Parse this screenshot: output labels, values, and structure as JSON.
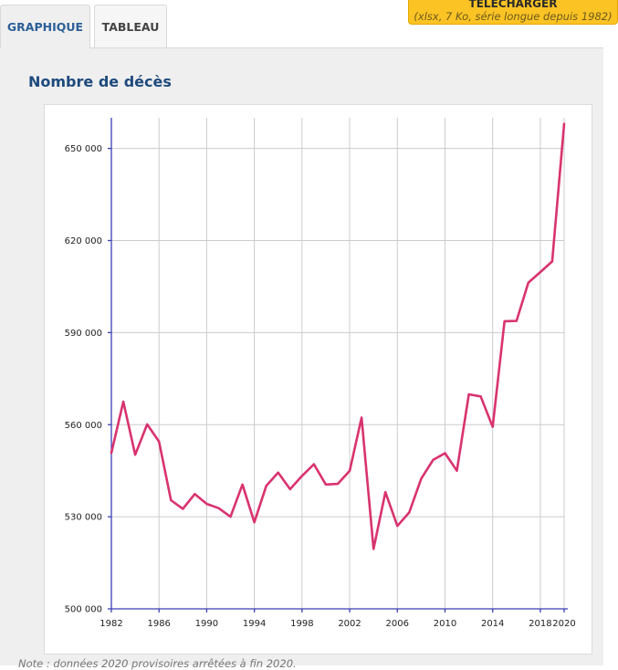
{
  "tabs": [
    {
      "label": "GRAPHIQUE",
      "active": true
    },
    {
      "label": "TABLEAU",
      "active": false
    }
  ],
  "download": {
    "title": "TÉLÉCHARGER",
    "subtitle": "(xlsx, 7 Ko, série longue depuis 1982)"
  },
  "colors": {
    "accent": "#2c5f97",
    "series": "#d9336e",
    "axis": "#3b3fb6",
    "button": "#fbc324"
  },
  "chart_data": {
    "type": "line",
    "title": "Nombre de décès",
    "xlabel": "",
    "ylabel": "",
    "xlim": [
      1982,
      2020
    ],
    "ylim": [
      500000,
      660000
    ],
    "grid": true,
    "x_ticks": [
      1982,
      1986,
      1990,
      1994,
      1998,
      2002,
      2006,
      2010,
      2014,
      2018,
      2020
    ],
    "x_tick_labels": [
      "1982",
      "1986",
      "1990",
      "1994",
      "1998",
      "2002",
      "2006",
      "2010",
      "2014",
      "2018",
      "2020"
    ],
    "y_ticks": [
      500000,
      530000,
      560000,
      590000,
      620000,
      650000
    ],
    "y_tick_labels": [
      "500 000",
      "530 000",
      "560 000",
      "590 000",
      "620 000",
      "650 000"
    ],
    "series": [
      {
        "name": "Nombre de décès",
        "x": [
          1982,
          1983,
          1984,
          1985,
          1986,
          1987,
          1988,
          1989,
          1990,
          1991,
          1992,
          1993,
          1994,
          1995,
          1996,
          1997,
          1998,
          1999,
          2000,
          2001,
          2002,
          2003,
          2004,
          2005,
          2006,
          2007,
          2008,
          2009,
          2010,
          2011,
          2012,
          2013,
          2014,
          2015,
          2016,
          2017,
          2018,
          2019,
          2020
        ],
        "values": [
          550800,
          567500,
          550200,
          560100,
          554500,
          535400,
          532600,
          537400,
          534200,
          532800,
          530000,
          540500,
          528200,
          540100,
          544400,
          539000,
          543300,
          547100,
          540500,
          540700,
          545000,
          562300,
          519500,
          538000,
          527000,
          531400,
          542400,
          548500,
          550700,
          545000,
          569900,
          569200,
          559300,
          593700,
          593800,
          606300,
          609700,
          613200,
          658000
        ]
      }
    ]
  },
  "note": "Note : données 2020 provisoires arrêtées à fin 2020."
}
